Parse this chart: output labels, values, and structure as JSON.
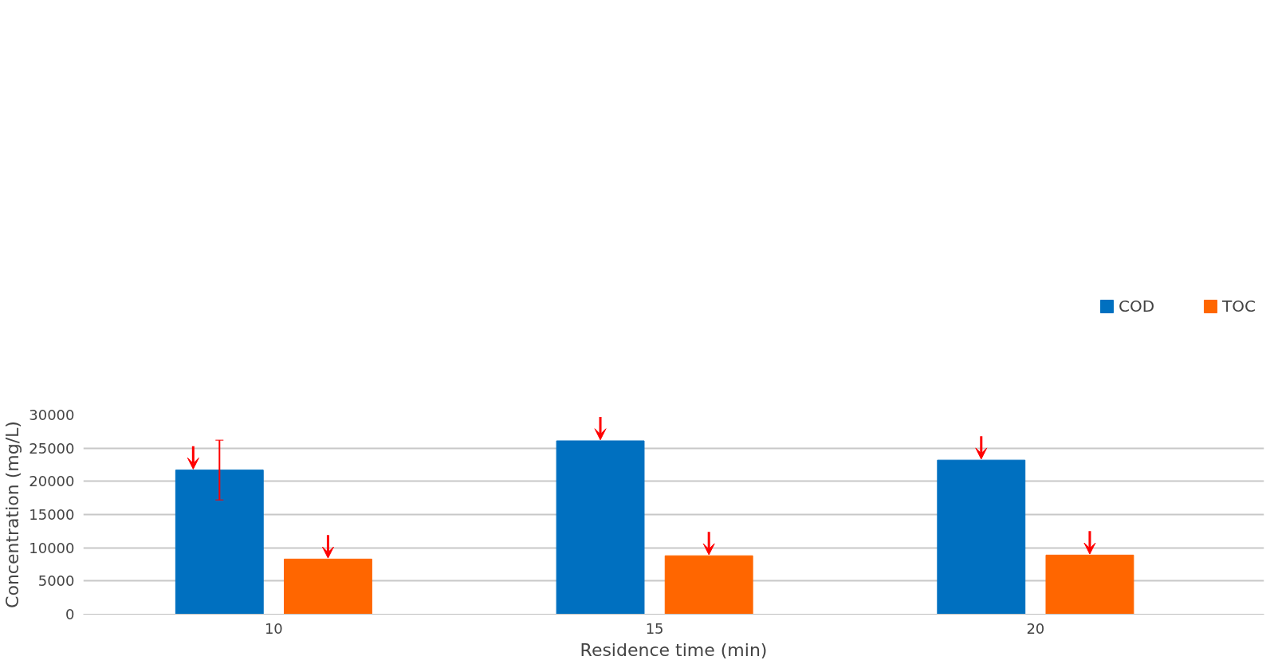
{
  "chart_data": {
    "type": "bar",
    "xlabel": "Residence time (min)",
    "ylabel": "Concentration (mg/L)",
    "categories": [
      "10",
      "15",
      "20"
    ],
    "series": [
      {
        "name": "COD",
        "color": "#0070c0",
        "values": [
          21700,
          26100,
          23200
        ],
        "errors": [
          4500,
          null,
          null
        ]
      },
      {
        "name": "TOC",
        "color": "#ff6600",
        "values": [
          8300,
          8800,
          8900
        ]
      }
    ],
    "ylim": [
      0,
      30000
    ],
    "yticks": [
      0,
      5000,
      10000,
      15000,
      20000,
      25000,
      30000
    ],
    "grid": "y",
    "legend": "top right"
  }
}
